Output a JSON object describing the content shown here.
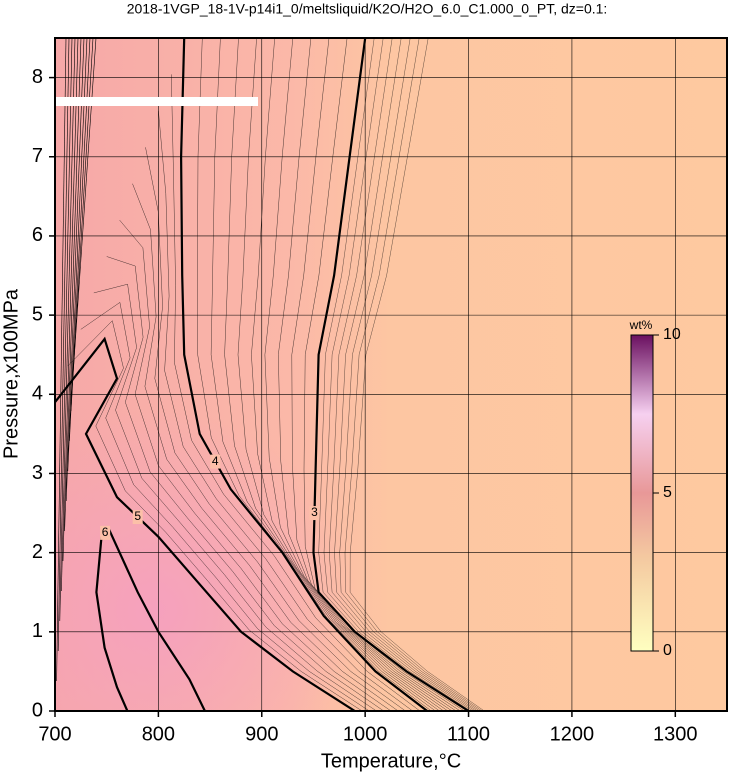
{
  "chart_data": {
    "type": "contour",
    "title": "2018-1VGP_18-1V-p14i1_0/meltsliquid/K2O/H2O_6.0_C1.000_0_PT, dz=0.1:",
    "xlabel": "Temperature,°C",
    "ylabel": "Pressure,x100MPa",
    "xlim": [
      700,
      1350
    ],
    "ylim": [
      0,
      8.5
    ],
    "xticks": [
      700,
      800,
      900,
      1000,
      1100,
      1200,
      1300
    ],
    "yticks": [
      0,
      1,
      2,
      3,
      4,
      5,
      6,
      7,
      8
    ],
    "grid": true,
    "contours": [
      {
        "level": 3,
        "x": [
          1000,
          985,
          970,
          955,
          952,
          950,
          955,
          990,
          1040,
          1100
        ],
        "y": [
          8.5,
          7,
          5.5,
          4.5,
          3,
          2,
          1.5,
          1,
          0.5,
          0
        ]
      },
      {
        "level": 4,
        "x": [
          825,
          822,
          823,
          825,
          840,
          870,
          920,
          960,
          1010,
          1060
        ],
        "y": [
          8.5,
          7,
          5.5,
          4.5,
          3.5,
          2.8,
          2,
          1.2,
          0.5,
          0
        ]
      },
      {
        "level": 5,
        "x": [
          700,
          748,
          760,
          730,
          760,
          800,
          840,
          880,
          930,
          990
        ],
        "y": [
          3.9,
          4.7,
          4.2,
          3.5,
          2.7,
          2.2,
          1.6,
          1,
          0.5,
          0
        ]
      },
      {
        "level": 6,
        "x": [
          770,
          760,
          748,
          740,
          745,
          752,
          780,
          800,
          830,
          845
        ],
        "y": [
          0,
          0.3,
          0.8,
          1.5,
          2.2,
          2.3,
          1.5,
          1,
          0.4,
          0
        ]
      }
    ],
    "colorbar": {
      "label": "wt%",
      "lim": [
        0,
        10
      ],
      "ticks": [
        0,
        5,
        10
      ]
    }
  }
}
